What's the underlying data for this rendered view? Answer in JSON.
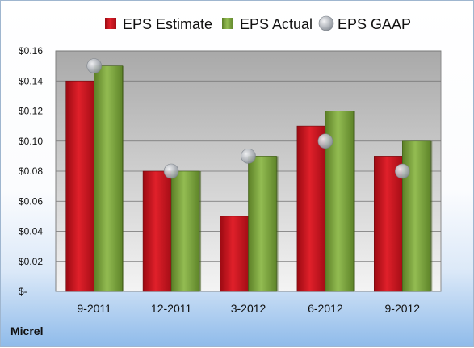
{
  "chart_data": {
    "type": "bar",
    "categories": [
      "9-2011",
      "12-2011",
      "3-2012",
      "6-2012",
      "9-2012"
    ],
    "series": [
      {
        "name": "EPS Estimate",
        "values": [
          0.14,
          0.08,
          0.05,
          0.11,
          0.09
        ],
        "color": "#c8141e",
        "kind": "bar"
      },
      {
        "name": "EPS Actual",
        "values": [
          0.15,
          0.08,
          0.09,
          0.12,
          0.1
        ],
        "color": "#7aa13b",
        "kind": "bar"
      },
      {
        "name": "EPS GAAP",
        "values": [
          0.15,
          0.08,
          0.09,
          0.1,
          0.08
        ],
        "color": "#aab0b8",
        "kind": "marker"
      }
    ],
    "y_ticks": [
      "$-",
      "$0.02",
      "$0.04",
      "$0.06",
      "$0.08",
      "$0.10",
      "$0.12",
      "$0.14",
      "$0.16"
    ],
    "ylim": [
      0,
      0.16
    ],
    "grid": true,
    "legend_position": "top"
  },
  "footer": {
    "company": "Micrel"
  }
}
